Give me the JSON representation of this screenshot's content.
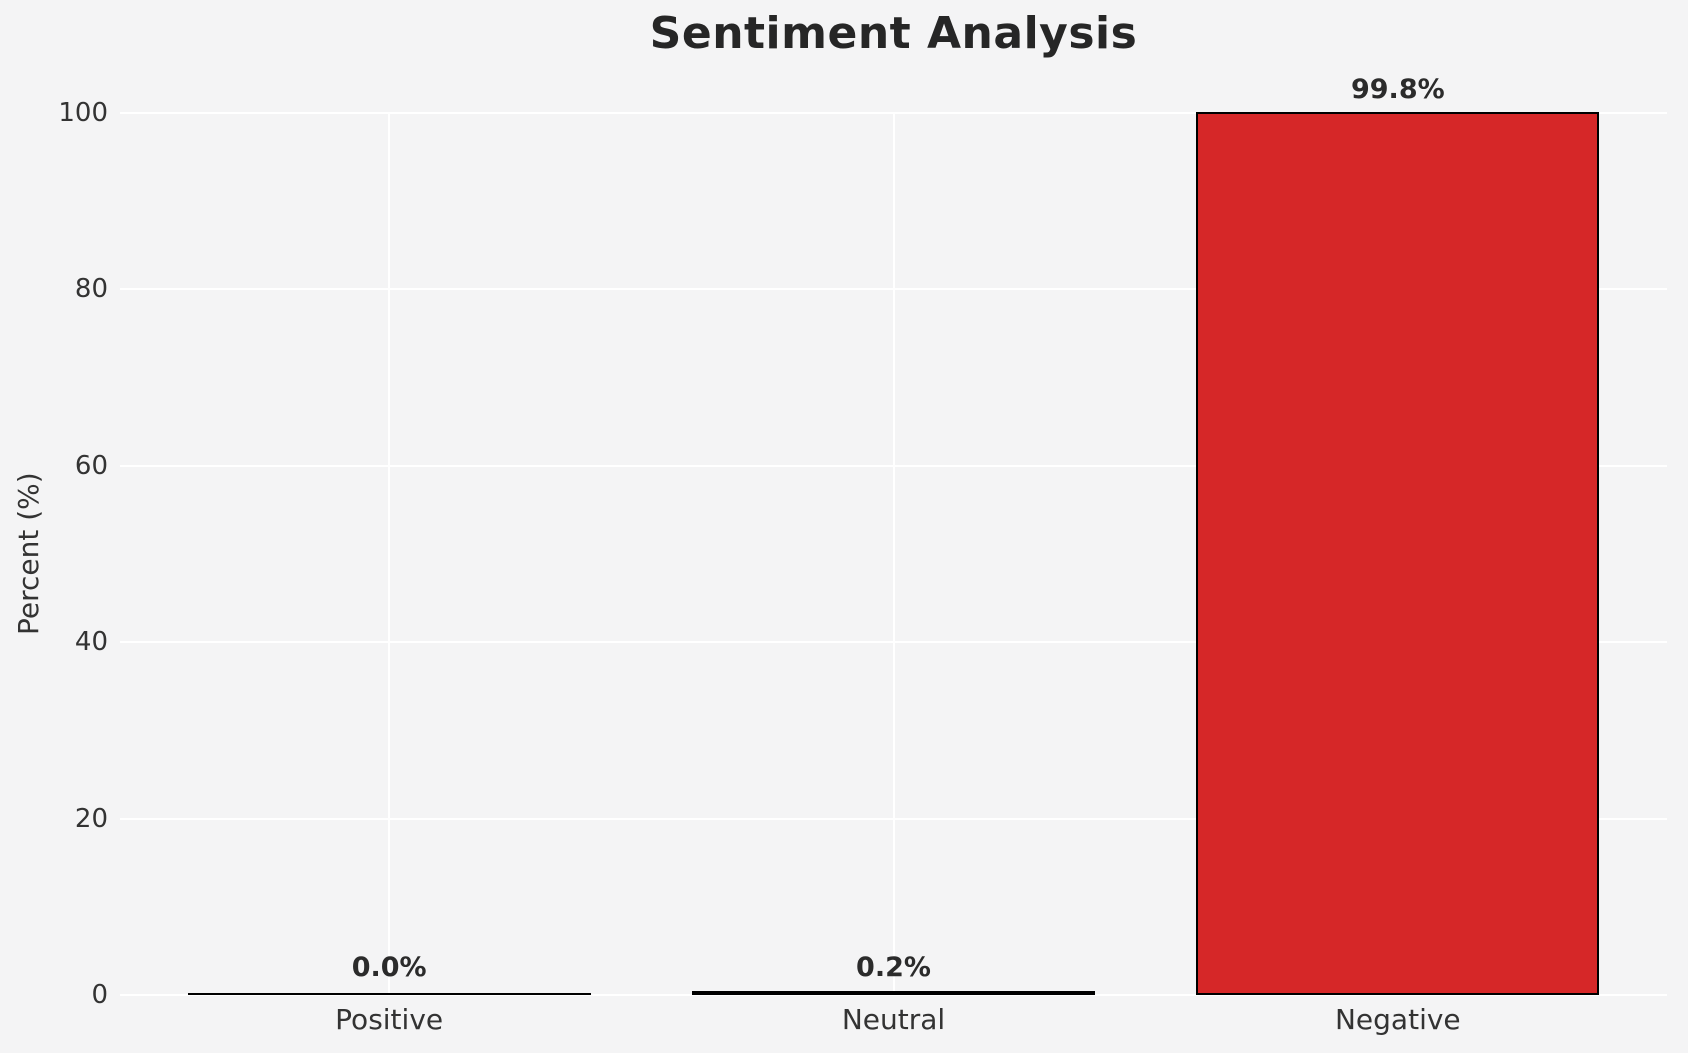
{
  "chart_data": {
    "type": "bar",
    "title": "Sentiment Analysis",
    "xlabel": "",
    "ylabel": "Percent (%)",
    "categories": [
      "Positive",
      "Neutral",
      "Negative"
    ],
    "values": [
      0.0,
      0.2,
      99.8
    ],
    "bar_labels": [
      "0.0%",
      "0.2%",
      "99.8%"
    ],
    "yticks": [
      0,
      20,
      40,
      60,
      80,
      100
    ],
    "ylim": [
      0,
      100
    ],
    "grid": true,
    "legend_position": "none",
    "colors": {
      "bar_fill": "#d62728",
      "bar_edge": "#000000",
      "background": "#f4f4f5",
      "gridline": "#ffffff",
      "tick_text": "#333333",
      "title_text": "#262626"
    }
  }
}
